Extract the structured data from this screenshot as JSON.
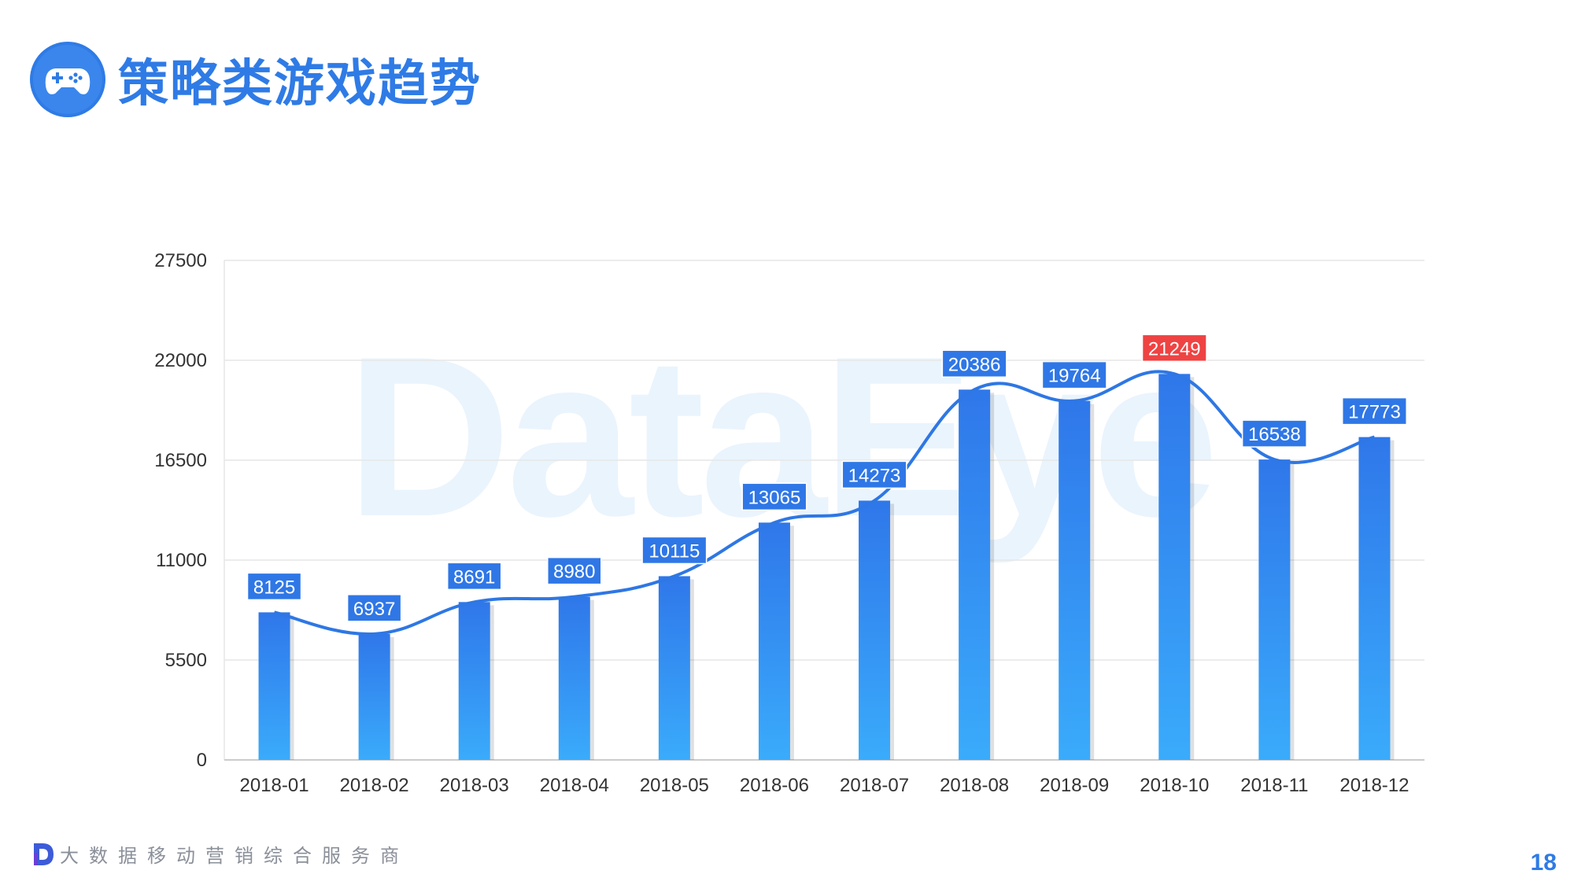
{
  "header": {
    "title": "策略类游戏趋势",
    "icon": "gamepad-icon"
  },
  "watermark": "DataEye",
  "chart_data": {
    "type": "bar",
    "title": "",
    "xlabel": "",
    "ylabel": "",
    "categories": [
      "2018-01",
      "2018-02",
      "2018-03",
      "2018-04",
      "2018-05",
      "2018-06",
      "2018-07",
      "2018-08",
      "2018-09",
      "2018-10",
      "2018-11",
      "2018-12"
    ],
    "series": [
      {
        "type": "bar",
        "values": [
          8125,
          6937,
          8691,
          8980,
          10115,
          13065,
          14273,
          20386,
          19764,
          21249,
          16538,
          17773
        ]
      },
      {
        "type": "line",
        "smooth": true,
        "values": [
          8125,
          6937,
          8691,
          8980,
          10115,
          13065,
          14273,
          20386,
          19764,
          21249,
          16538,
          17773
        ]
      }
    ],
    "ylim": [
      0,
      27500
    ],
    "yticks": [
      0,
      5500,
      11000,
      16500,
      22000,
      27500
    ],
    "grid": true,
    "highlight_index": 9,
    "colors": {
      "bar_top": "#2f77ea",
      "bar_bottom": "#3aabfb",
      "line": "#2e77e4",
      "label_bg": "#2f77e6",
      "highlight_bg": "#ef4343",
      "grid": "#e6e6e6",
      "axis_text": "#333333"
    }
  },
  "footer": {
    "logo_icon": "dataeye-d-logo-icon",
    "tagline": "大数据移动营销综合服务商"
  },
  "page_number": "18"
}
